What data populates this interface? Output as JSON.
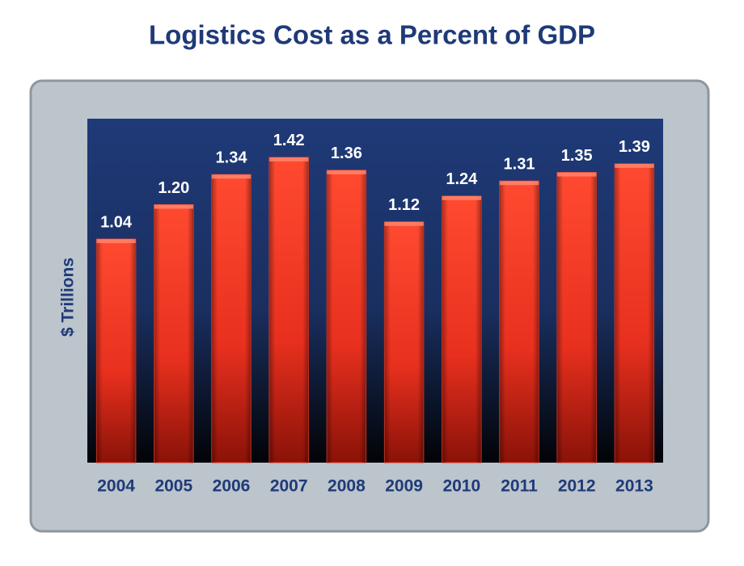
{
  "chart_data": {
    "type": "bar",
    "title": "Logistics Cost as a Percent of GDP",
    "y_label": "$ Trillions",
    "categories": [
      "2004",
      "2005",
      "2006",
      "2007",
      "2008",
      "2009",
      "2010",
      "2011",
      "2012",
      "2013"
    ],
    "values": [
      1.04,
      1.2,
      1.34,
      1.42,
      1.36,
      1.12,
      1.24,
      1.31,
      1.35,
      1.39
    ],
    "value_labels": [
      "1.04",
      "1.20",
      "1.34",
      "1.42",
      "1.36",
      "1.12",
      "1.24",
      "1.31",
      "1.35",
      "1.39"
    ],
    "color": "#f03a28",
    "ylim": [
      0,
      1.6
    ],
    "grid": false
  }
}
